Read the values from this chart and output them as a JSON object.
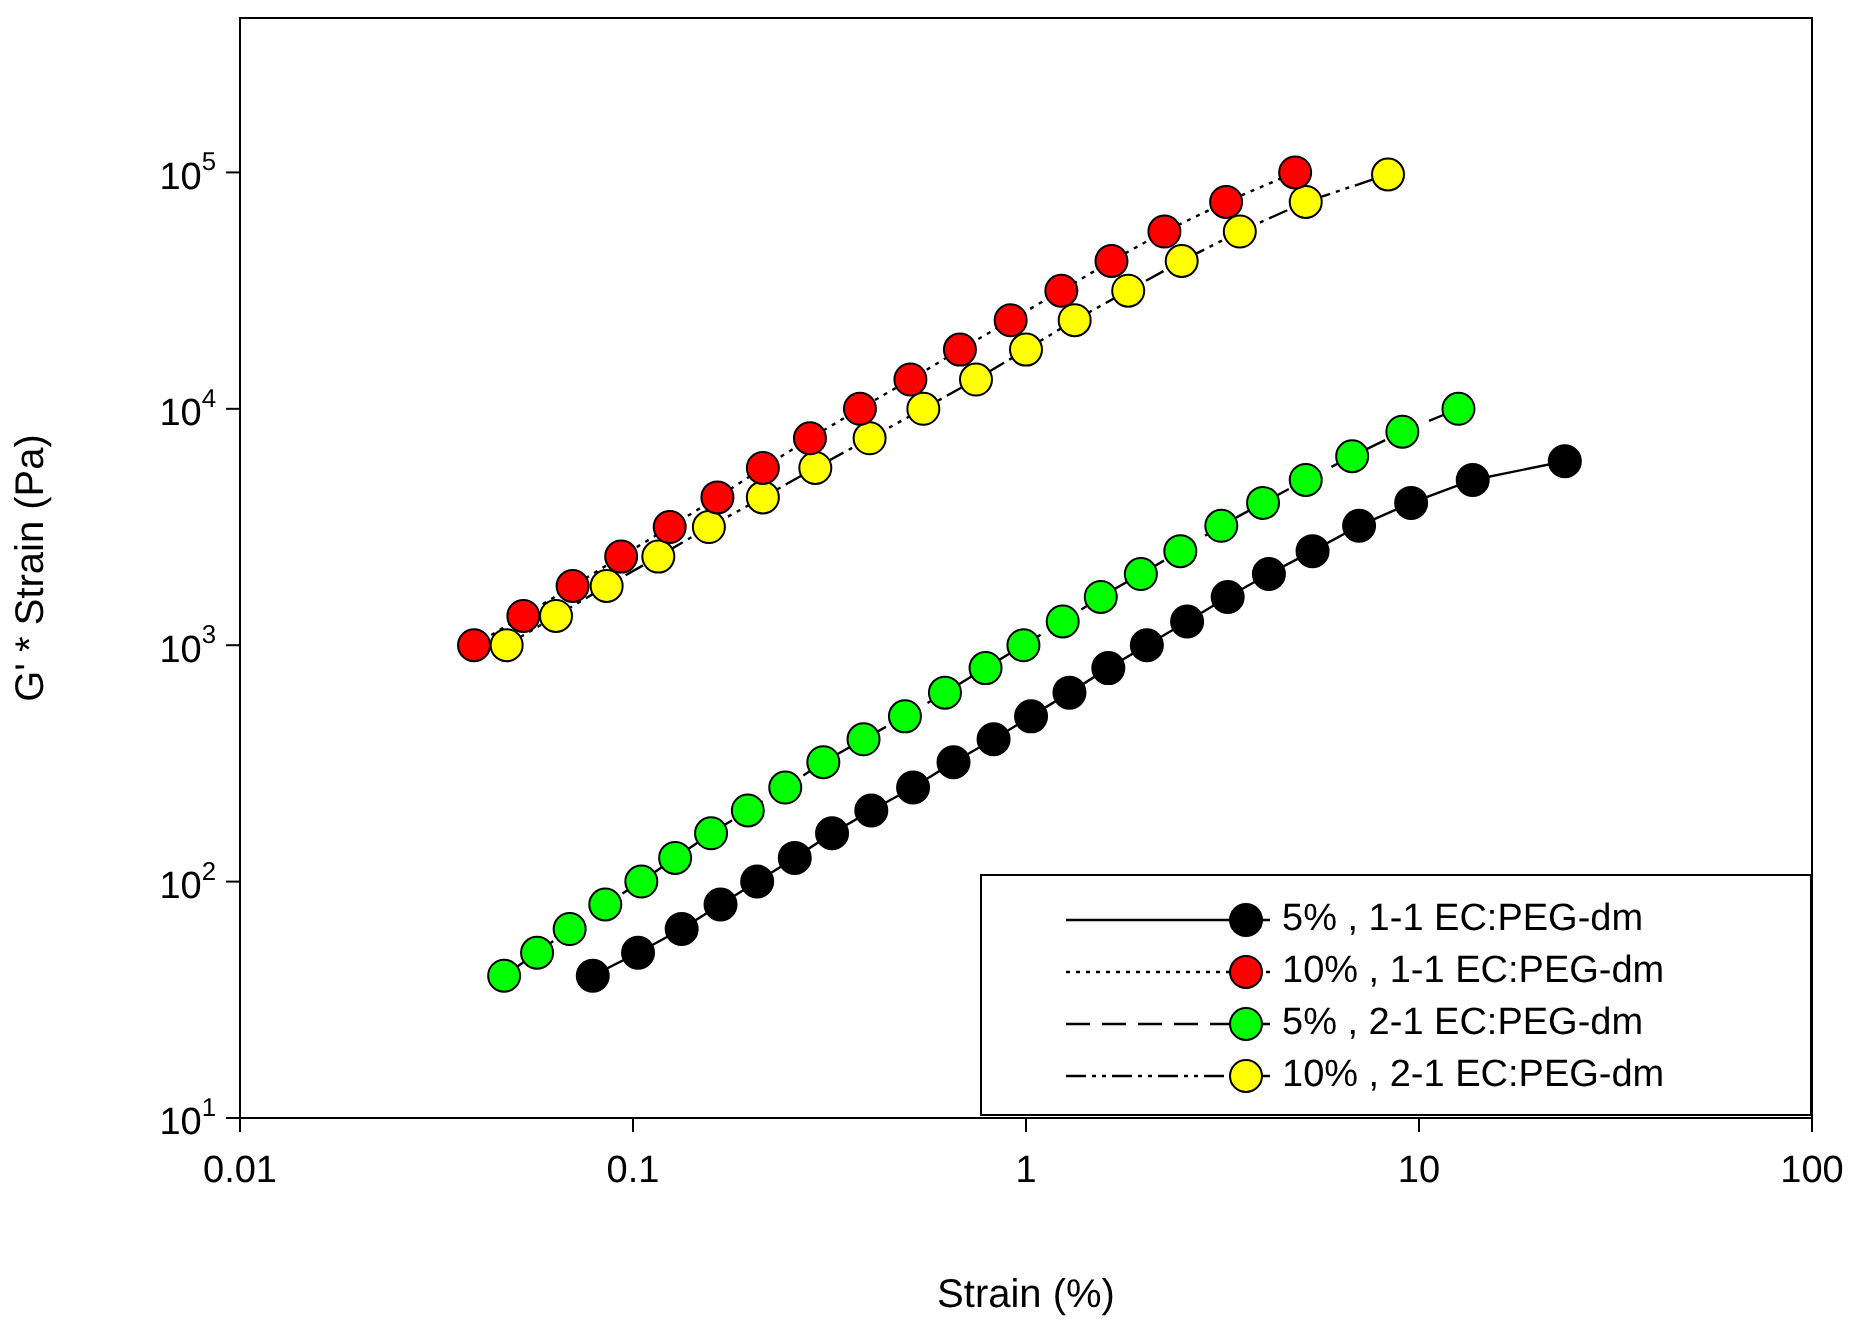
{
  "chart_data": {
    "type": "line",
    "xlabel": "Strain (%)",
    "ylabel": "G' * Strain (Pa)",
    "log": "xy",
    "xlim": [
      0.01,
      100
    ],
    "ylim": [
      10,
      450000
    ],
    "xticks": [
      0.01,
      0.1,
      1,
      10,
      100
    ],
    "yticks": [
      {
        "value": 10,
        "label": "10$^{1}$"
      },
      {
        "value": 100,
        "label": "10$^{2}$"
      },
      {
        "value": 1000,
        "label": "10$^{3}$"
      },
      {
        "value": 10000,
        "label": "10$^{4}$"
      },
      {
        "value": 100000,
        "label": "10$^{5}$"
      }
    ],
    "grid": false,
    "legend": "bottom right",
    "marker": "circle",
    "series": [
      {
        "name": "5% , 1-1 EC:PEG-dm",
        "color": "#000000",
        "line_style": "solid",
        "x": [
          0.079,
          0.103,
          0.133,
          0.167,
          0.207,
          0.258,
          0.321,
          0.404,
          0.516,
          0.654,
          0.827,
          1.03,
          1.29,
          1.62,
          2.03,
          2.57,
          3.26,
          4.15,
          5.36,
          7.04,
          9.55,
          13.7,
          23.5
        ],
        "values": [
          40,
          50,
          63,
          80,
          100,
          126,
          160,
          200,
          250,
          320,
          400,
          500,
          630,
          800,
          1000,
          1260,
          1600,
          2000,
          2500,
          3200,
          4000,
          5000,
          6000
        ]
      },
      {
        "name": "10% , 1-1 EC:PEG-dm",
        "color": "#ff0000",
        "line_style": "dotted",
        "x": [
          0.0394,
          0.0526,
          0.0702,
          0.0933,
          0.124,
          0.164,
          0.214,
          0.282,
          0.378,
          0.508,
          0.679,
          0.914,
          1.23,
          1.65,
          2.25,
          3.23,
          4.84
        ],
        "values": [
          1000,
          1330,
          1780,
          2370,
          3160,
          4220,
          5620,
          7500,
          10000,
          13300,
          17800,
          23700,
          31600,
          42200,
          56200,
          75000,
          100000
        ]
      },
      {
        "name": "5% , 2-1 EC:PEG-dm",
        "color": "#00ff00",
        "line_style": "dashed",
        "x": [
          0.047,
          0.057,
          0.069,
          0.085,
          0.105,
          0.128,
          0.158,
          0.196,
          0.244,
          0.305,
          0.386,
          0.492,
          0.622,
          0.789,
          0.985,
          1.24,
          1.55,
          1.96,
          2.47,
          3.14,
          4.01,
          5.15,
          6.76,
          9.07,
          12.6
        ],
        "values": [
          40,
          50,
          63,
          80,
          100,
          126,
          160,
          200,
          250,
          320,
          400,
          500,
          630,
          800,
          1000,
          1260,
          1600,
          2000,
          2500,
          3200,
          4000,
          5000,
          6300,
          8000,
          10000
        ]
      },
      {
        "name": "10% , 2-1 EC:PEG-dm",
        "color": "#ffff00",
        "line_style": "dashdotdot",
        "x": [
          0.0477,
          0.0637,
          0.0857,
          0.116,
          0.156,
          0.214,
          0.291,
          0.4,
          0.548,
          0.746,
          1.0,
          1.33,
          1.82,
          2.49,
          3.5,
          5.15,
          8.34
        ],
        "values": [
          1000,
          1330,
          1780,
          2370,
          3160,
          4220,
          5620,
          7500,
          10000,
          13300,
          17800,
          23700,
          31600,
          42200,
          56200,
          75000,
          98000
        ]
      }
    ]
  }
}
